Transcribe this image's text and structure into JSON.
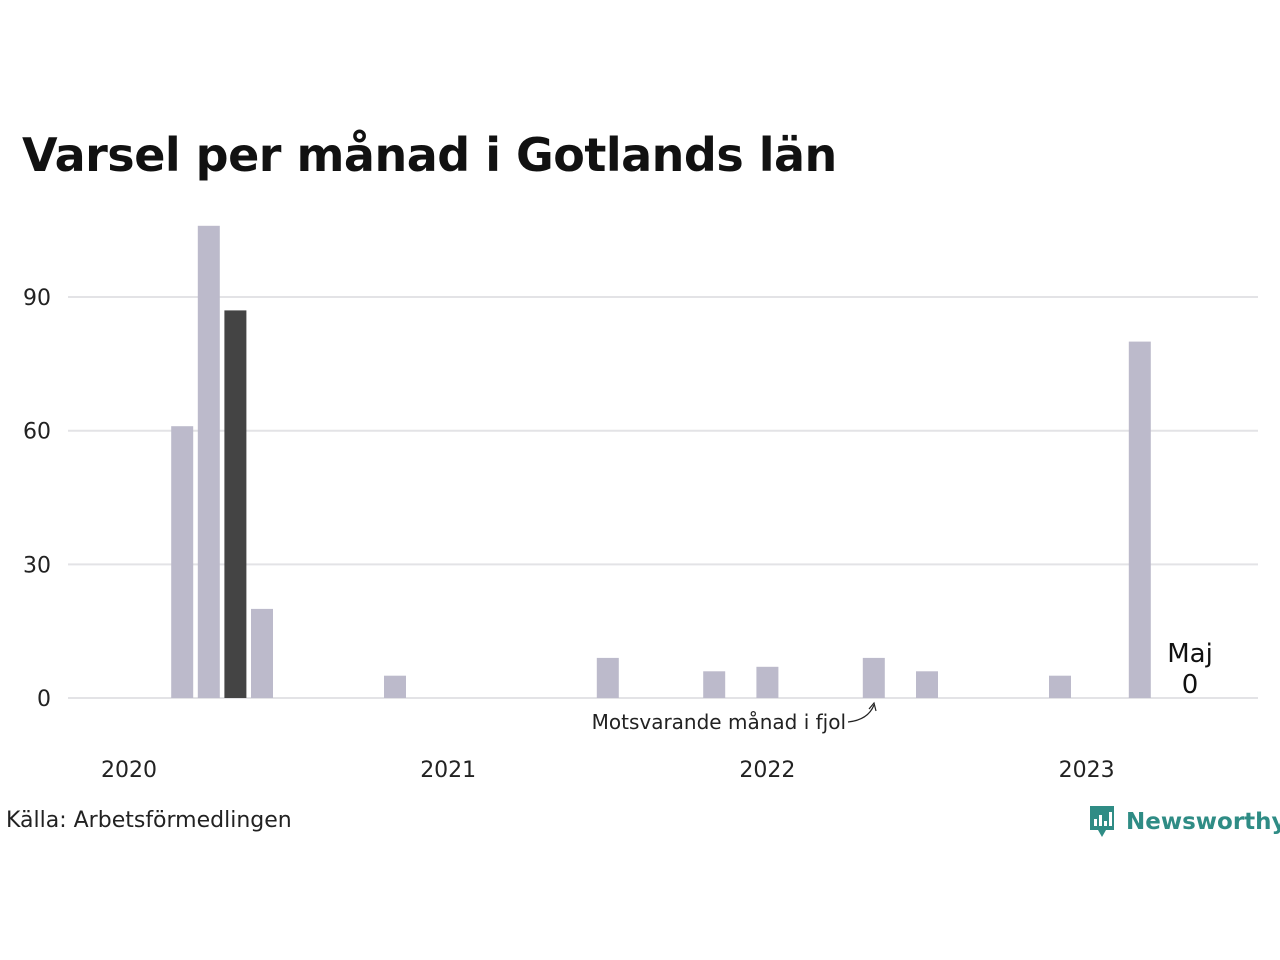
{
  "title": "Varsel per månad i Gotlands län",
  "source": "Källa: Arbetsförmedlingen",
  "brand": {
    "name": "Newsworthy",
    "color": "#2f8c85",
    "icon": "newsworthy-logo-icon"
  },
  "chart_data": {
    "type": "bar",
    "title": "Varsel per månad i Gotlands län",
    "xlabel": "",
    "ylabel": "",
    "ylim": [
      0,
      110
    ],
    "y_ticks": [
      0,
      30,
      60,
      90
    ],
    "x_ticks": [
      "2020",
      "2021",
      "2022",
      "2023"
    ],
    "grid": true,
    "colors": {
      "default": "#bcbacb",
      "highlight": "#444444"
    },
    "months": [
      "2020-01",
      "2020-02",
      "2020-03",
      "2020-04",
      "2020-05",
      "2020-06",
      "2020-07",
      "2020-08",
      "2020-09",
      "2020-10",
      "2020-11",
      "2020-12",
      "2021-01",
      "2021-02",
      "2021-03",
      "2021-04",
      "2021-05",
      "2021-06",
      "2021-07",
      "2021-08",
      "2021-09",
      "2021-10",
      "2021-11",
      "2021-12",
      "2022-01",
      "2022-02",
      "2022-03",
      "2022-04",
      "2022-05",
      "2022-06",
      "2022-07",
      "2022-08",
      "2022-09",
      "2022-10",
      "2022-11",
      "2022-12",
      "2023-01",
      "2023-02",
      "2023-03",
      "2023-04",
      "2023-05"
    ],
    "values": [
      0,
      0,
      61,
      106,
      87,
      20,
      0,
      0,
      0,
      0,
      5,
      0,
      0,
      0,
      0,
      0,
      0,
      0,
      9,
      0,
      0,
      0,
      6,
      0,
      7,
      0,
      0,
      0,
      9,
      0,
      6,
      0,
      0,
      0,
      0,
      5,
      0,
      0,
      80,
      0,
      0
    ],
    "highlight_index": 4,
    "annotations": {
      "same_month_last_year": "Motsvarande månad i fjol",
      "last_month_label": "Maj",
      "last_month_value": "0"
    }
  }
}
